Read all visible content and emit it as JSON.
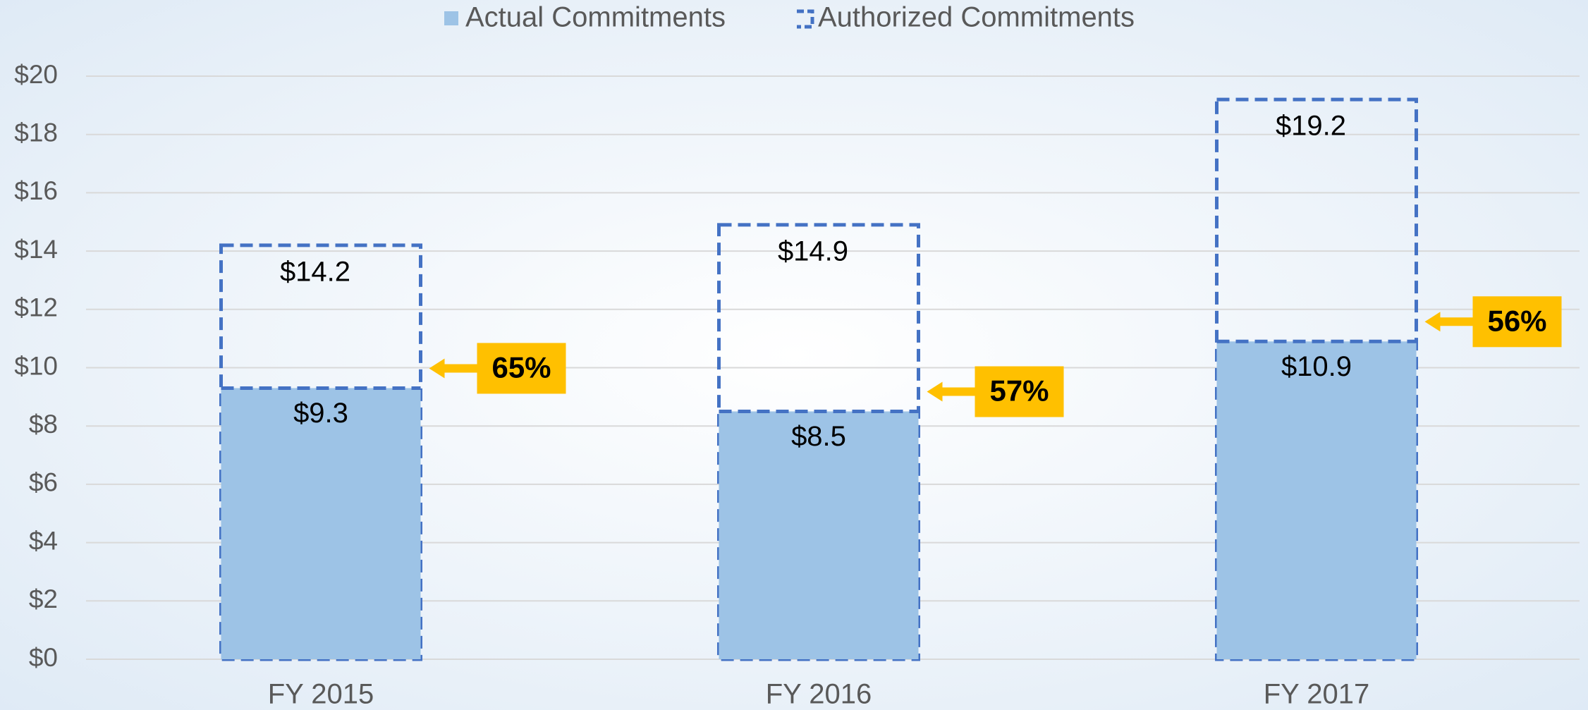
{
  "chart_data": {
    "type": "bar",
    "categories": [
      "FY 2015",
      "FY 2016",
      "FY 2017"
    ],
    "series": [
      {
        "name": "Actual Commitments",
        "color": "#9dc3e6",
        "values": [
          9.3,
          8.5,
          10.9
        ],
        "value_labels": [
          "$9.3",
          "$8.5",
          "$10.9"
        ]
      },
      {
        "name": "Authorized Commitments",
        "color": "#4472c4",
        "style": "dashed",
        "values": [
          14.2,
          14.9,
          19.2
        ],
        "value_labels": [
          "$14.2",
          "$14.9",
          "$19.2"
        ]
      }
    ],
    "annotations": [
      {
        "label": "65%",
        "value": 65
      },
      {
        "label": "57%",
        "value": 57
      },
      {
        "label": "56%",
        "value": 56
      }
    ],
    "annotation_color": "#ffc000",
    "ylim": [
      0,
      20
    ],
    "yticks": [
      {
        "value": 0,
        "label": "$0"
      },
      {
        "value": 2,
        "label": "$2"
      },
      {
        "value": 4,
        "label": "$4"
      },
      {
        "value": 6,
        "label": "$6"
      },
      {
        "value": 8,
        "label": "$8"
      },
      {
        "value": 10,
        "label": "$10"
      },
      {
        "value": 12,
        "label": "$12"
      },
      {
        "value": 14,
        "label": "$14"
      },
      {
        "value": 16,
        "label": "$16"
      },
      {
        "value": 18,
        "label": "$18"
      },
      {
        "value": 20,
        "label": "$20"
      }
    ],
    "grid": true,
    "legend": "top"
  }
}
